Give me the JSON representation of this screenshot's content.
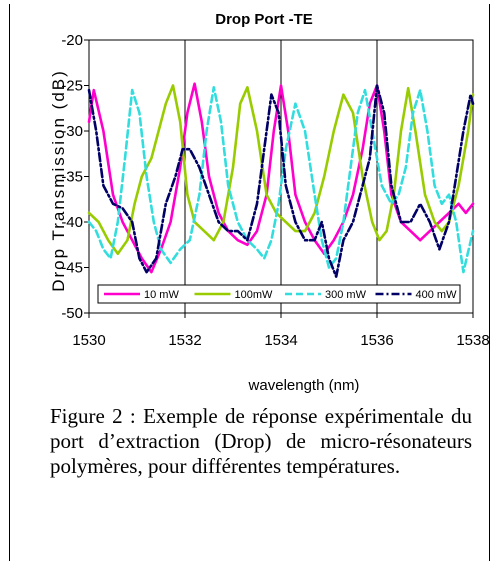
{
  "chart_data": {
    "type": "line",
    "title": "Drop Port  -TE",
    "xlabel": "wavelength (nm)",
    "ylabel": "Drop Transmission (dB)",
    "xlim": [
      1530,
      1538
    ],
    "ylim": [
      -50,
      -20
    ],
    "xticks": [
      1530,
      1532,
      1534,
      1536,
      1538
    ],
    "yticks": [
      -20,
      -25,
      -30,
      -35,
      -40,
      -45,
      -50
    ],
    "grid": "vertical",
    "legend": "bottom-inside",
    "series": [
      {
        "name": "10 mW",
        "color": "#ff00cc",
        "dash": "solid",
        "x": [
          1530,
          1530.1,
          1530.3,
          1530.5,
          1530.7,
          1530.9,
          1531.1,
          1531.3,
          1531.5,
          1531.7,
          1531.9,
          1532.05,
          1532.2,
          1532.35,
          1532.5,
          1532.7,
          1532.9,
          1533.1,
          1533.3,
          1533.5,
          1533.7,
          1533.85,
          1534.0,
          1534.15,
          1534.3,
          1534.5,
          1534.7,
          1534.9,
          1535.1,
          1535.3,
          1535.5,
          1535.7,
          1535.85,
          1536.0,
          1536.15,
          1536.3,
          1536.5,
          1536.7,
          1536.9,
          1537.1,
          1537.3,
          1537.5,
          1537.7,
          1537.85,
          1538.0
        ],
        "y": [
          -29,
          -25.5,
          -30,
          -37,
          -40,
          -42,
          -44,
          -45.5,
          -43,
          -40,
          -34,
          -28,
          -24.8,
          -29,
          -35,
          -39,
          -41,
          -42,
          -42.5,
          -41,
          -37,
          -30,
          -25,
          -30,
          -37,
          -40,
          -42,
          -43.5,
          -42,
          -40,
          -37,
          -32,
          -27,
          -25,
          -30,
          -37,
          -40,
          -41,
          -42,
          -41,
          -40,
          -39,
          -38,
          -39,
          -38
        ]
      },
      {
        "name": "100mW",
        "color": "#99cc00",
        "dash": "solid",
        "x": [
          1530,
          1530.2,
          1530.4,
          1530.6,
          1530.8,
          1530.95,
          1531.1,
          1531.3,
          1531.45,
          1531.6,
          1531.75,
          1531.9,
          1532.05,
          1532.2,
          1532.4,
          1532.6,
          1532.8,
          1533.0,
          1533.15,
          1533.3,
          1533.5,
          1533.7,
          1533.9,
          1534.1,
          1534.3,
          1534.5,
          1534.7,
          1534.9,
          1535.1,
          1535.3,
          1535.5,
          1535.7,
          1535.9,
          1536.05,
          1536.2,
          1536.35,
          1536.5,
          1536.65,
          1536.8,
          1537.0,
          1537.2,
          1537.35,
          1537.5,
          1537.7,
          1537.9,
          1538.0
        ],
        "y": [
          -39,
          -40,
          -42,
          -43.5,
          -42,
          -38,
          -35,
          -33,
          -30,
          -27,
          -25,
          -29,
          -37,
          -40,
          -41,
          -42,
          -40,
          -34,
          -27,
          -25.2,
          -30,
          -37,
          -39,
          -40,
          -41,
          -41,
          -39,
          -35,
          -30,
          -26,
          -28,
          -35,
          -40,
          -42,
          -41,
          -37,
          -30,
          -25.3,
          -30,
          -37,
          -40,
          -41,
          -40,
          -36,
          -30,
          -26
        ]
      },
      {
        "name": "300 mW",
        "color": "#33dddd",
        "dash": "dashed",
        "x": [
          1530,
          1530.15,
          1530.3,
          1530.45,
          1530.6,
          1530.75,
          1530.9,
          1531.05,
          1531.2,
          1531.35,
          1531.5,
          1531.7,
          1531.9,
          1532.1,
          1532.3,
          1532.45,
          1532.6,
          1532.75,
          1532.9,
          1533.1,
          1533.3,
          1533.5,
          1533.65,
          1533.8,
          1533.95,
          1534.1,
          1534.3,
          1534.5,
          1534.7,
          1534.85,
          1535.0,
          1535.15,
          1535.3,
          1535.45,
          1535.6,
          1535.75,
          1535.9,
          1536.1,
          1536.3,
          1536.45,
          1536.6,
          1536.75,
          1536.9,
          1537.05,
          1537.2,
          1537.35,
          1537.5,
          1537.65,
          1537.8,
          1538.0
        ],
        "y": [
          -40,
          -41,
          -43,
          -44,
          -40,
          -33,
          -25.5,
          -28,
          -35,
          -40,
          -43,
          -44.5,
          -43,
          -42,
          -37,
          -30,
          -25.2,
          -29,
          -36,
          -40,
          -42,
          -43,
          -44,
          -42,
          -38,
          -32,
          -27,
          -30,
          -37,
          -42,
          -45,
          -44,
          -40,
          -34,
          -28,
          -25.5,
          -30,
          -36,
          -38,
          -37,
          -34,
          -28,
          -25.5,
          -30,
          -36,
          -38,
          -37,
          -40,
          -45.5,
          -41
        ]
      },
      {
        "name": "400 mW",
        "color": "#000066",
        "dash": "dashdot",
        "x": [
          1530,
          1530.15,
          1530.3,
          1530.5,
          1530.7,
          1530.9,
          1531.05,
          1531.2,
          1531.4,
          1531.6,
          1531.8,
          1531.95,
          1532.1,
          1532.3,
          1532.5,
          1532.7,
          1532.9,
          1533.1,
          1533.3,
          1533.5,
          1533.65,
          1533.8,
          1533.95,
          1534.1,
          1534.3,
          1534.5,
          1534.7,
          1534.85,
          1535.0,
          1535.15,
          1535.3,
          1535.5,
          1535.7,
          1535.85,
          1536.0,
          1536.15,
          1536.3,
          1536.5,
          1536.7,
          1536.9,
          1537.1,
          1537.3,
          1537.5,
          1537.65,
          1537.8,
          1537.95,
          1538.0
        ],
        "y": [
          -25.5,
          -30,
          -36,
          -38,
          -38.5,
          -40,
          -44,
          -45.5,
          -44,
          -38,
          -35,
          -32,
          -32,
          -34,
          -37,
          -40,
          -41,
          -41,
          -42,
          -38,
          -32,
          -26,
          -28,
          -36,
          -40,
          -42,
          -42,
          -40,
          -44,
          -46,
          -42,
          -40,
          -36,
          -33,
          -25,
          -28,
          -36,
          -40,
          -40,
          -38,
          -40,
          -43,
          -40,
          -35,
          -30,
          -26,
          -27
        ]
      }
    ]
  },
  "caption": "Figure 2 : Exemple de réponse expérimentale du port d’extraction (Drop) de micro-résonateurs polymères, pour différentes températures."
}
